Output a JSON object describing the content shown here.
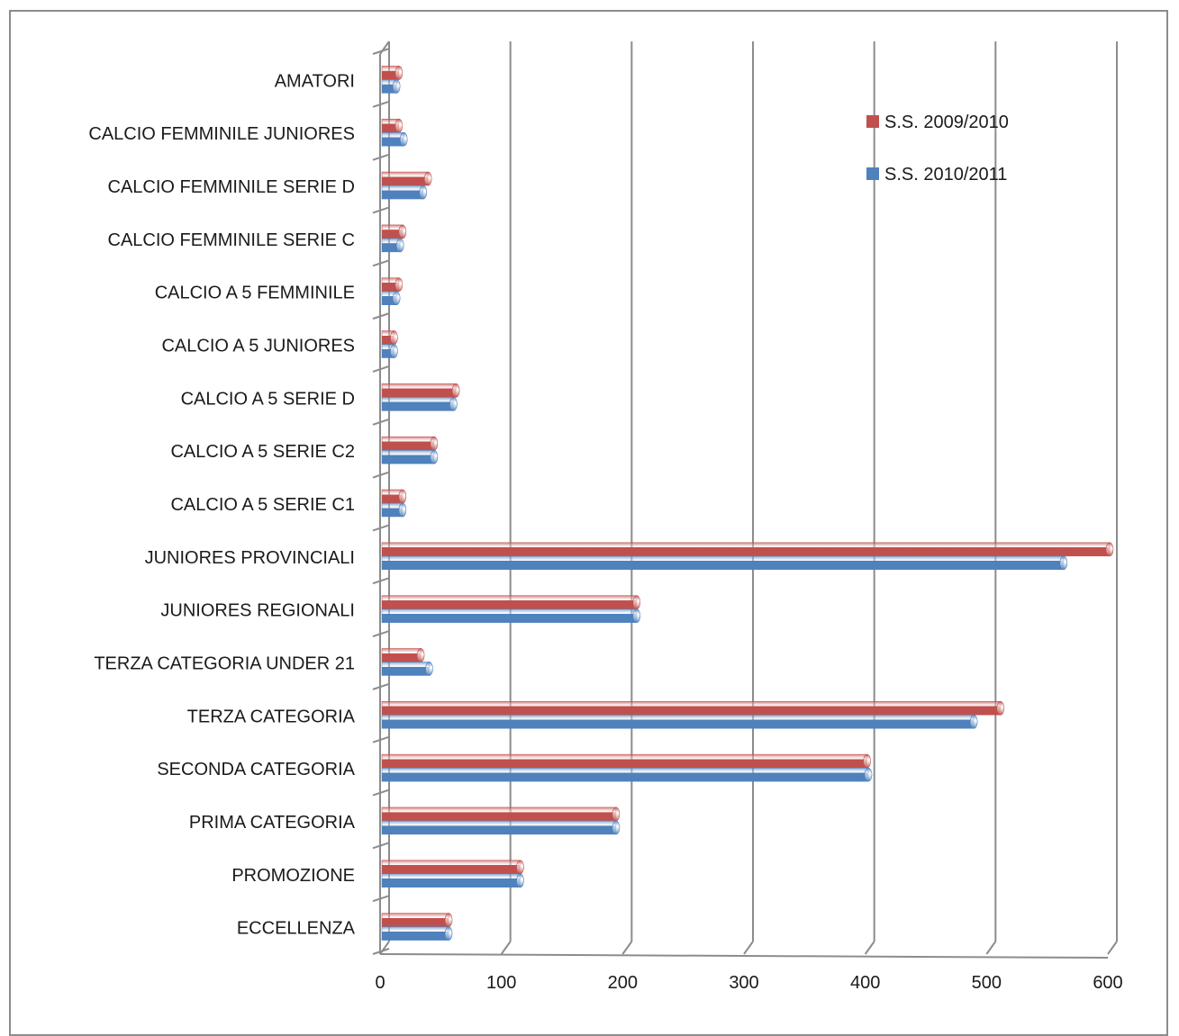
{
  "chart_data": {
    "type": "bar",
    "orientation": "horizontal",
    "categories": [
      "AMATORI",
      "CALCIO FEMMINILE JUNIORES",
      "CALCIO FEMMINILE SERIE D",
      "CALCIO FEMMINILE SERIE C",
      "CALCIO A 5 FEMMINILE",
      "CALCIO A 5 JUNIORES",
      "CALCIO A 5 SERIE D",
      "CALCIO A 5 SERIE C2",
      "CALCIO A 5 SERIE C1",
      "JUNIORES PROVINCIALI",
      "JUNIORES REGIONALI",
      "TERZA CATEGORIA UNDER 21",
      "TERZA CATEGORIA",
      "SECONDA CATEGORIA",
      "PRIMA CATEGORIA",
      "PROMOZIONE",
      "ECCELLENZA"
    ],
    "series": [
      {
        "name": "S.S. 2009/2010",
        "color": "#c0504d",
        "values": [
          14,
          14,
          38,
          17,
          14,
          10,
          61,
          43,
          17,
          600,
          210,
          32,
          510,
          400,
          193,
          114,
          55
        ]
      },
      {
        "name": "S.S. 2010/2011",
        "color": "#4f81bd",
        "values": [
          12,
          18,
          34,
          15,
          12,
          10,
          59,
          43,
          17,
          562,
          210,
          39,
          488,
          401,
          193,
          114,
          55
        ]
      }
    ],
    "xlim": [
      0,
      600
    ],
    "xticks": [
      "0",
      "100",
      "200",
      "300",
      "400",
      "500",
      "600"
    ],
    "title": "",
    "xlabel": "",
    "ylabel": "",
    "grid": "vertical",
    "legend_position": "top-right"
  }
}
